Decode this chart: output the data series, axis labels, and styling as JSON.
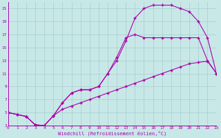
{
  "xlabel": "Windchill (Refroidissement éolien,°C)",
  "bg_color": "#c8e8e8",
  "grid_color": "#a8cccc",
  "line_color": "#aa00aa",
  "xmin": 0,
  "xmax": 23,
  "ymin": 3,
  "ymax": 22,
  "yticks": [
    3,
    5,
    7,
    9,
    11,
    13,
    15,
    17,
    19,
    21
  ],
  "xticks": [
    0,
    1,
    2,
    3,
    4,
    5,
    6,
    7,
    8,
    9,
    10,
    11,
    12,
    13,
    14,
    15,
    16,
    17,
    18,
    19,
    20,
    21,
    22,
    23
  ],
  "curve1_x": [
    0,
    1,
    2,
    3,
    4,
    5,
    6,
    7,
    8,
    9,
    10,
    11,
    12,
    13,
    14,
    15,
    16,
    17,
    18,
    19,
    20,
    21,
    22,
    23
  ],
  "curve1_y": [
    5.0,
    4.7,
    4.4,
    3.1,
    3.0,
    4.5,
    6.5,
    8.0,
    8.5,
    8.5,
    9.0,
    11.0,
    13.0,
    16.0,
    19.5,
    21.0,
    21.5,
    21.5,
    21.5,
    21.0,
    20.5,
    19.0,
    16.5,
    11.0
  ],
  "curve2_x": [
    0,
    1,
    2,
    3,
    4,
    5,
    6,
    7,
    8,
    9,
    10,
    11,
    12,
    13,
    14,
    15,
    16,
    17,
    18,
    19,
    20,
    21,
    22,
    23
  ],
  "curve2_y": [
    5.0,
    4.7,
    4.4,
    3.1,
    3.0,
    4.5,
    6.5,
    8.0,
    8.5,
    8.5,
    9.0,
    11.0,
    13.5,
    16.5,
    17.0,
    16.5,
    16.5,
    16.5,
    16.5,
    16.5,
    16.5,
    16.5,
    13.0,
    11.0
  ],
  "curve3_x": [
    0,
    1,
    2,
    3,
    4,
    5,
    6,
    7,
    8,
    9,
    10,
    11,
    12,
    13,
    14,
    15,
    16,
    17,
    18,
    19,
    20,
    21,
    22,
    23
  ],
  "curve3_y": [
    5.0,
    4.7,
    4.4,
    3.1,
    3.0,
    4.5,
    5.5,
    6.0,
    6.5,
    7.0,
    7.5,
    8.0,
    8.5,
    9.0,
    9.5,
    10.0,
    10.5,
    11.0,
    11.5,
    12.0,
    12.5,
    12.7,
    12.9,
    11.0
  ]
}
